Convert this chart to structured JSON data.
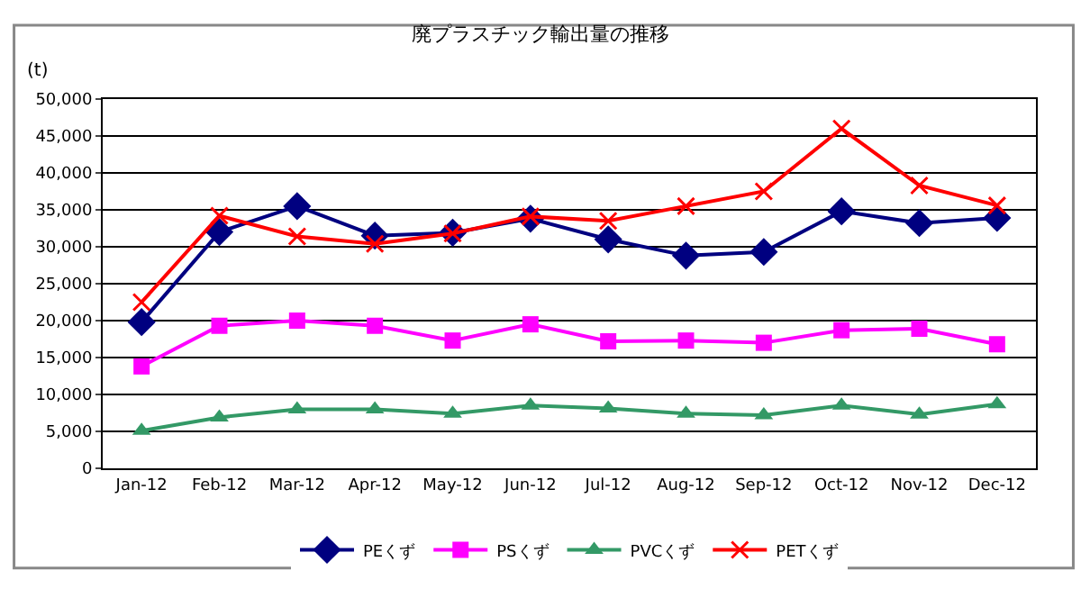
{
  "chart_data": {
    "type": "line",
    "title": "廃プラスチック輸出量の推移",
    "ylabel": "(t)",
    "categories": [
      "Jan-12",
      "Feb-12",
      "Mar-12",
      "Apr-12",
      "May-12",
      "Jun-12",
      "Jul-12",
      "Aug-12",
      "Sep-12",
      "Oct-12",
      "Nov-12",
      "Dec-12"
    ],
    "series": [
      {
        "name": "PEくず",
        "color": "#000080",
        "marker": "diamond",
        "values": [
          19800,
          32000,
          35500,
          31500,
          31900,
          33800,
          31000,
          28800,
          29300,
          34800,
          33200,
          33900
        ]
      },
      {
        "name": "PSくず",
        "color": "#ff00ff",
        "marker": "square",
        "values": [
          13800,
          19300,
          20000,
          19300,
          17300,
          19500,
          17200,
          17300,
          17000,
          18700,
          18900,
          16800
        ]
      },
      {
        "name": "PVCくず",
        "color": "#339966",
        "marker": "triangle",
        "values": [
          5100,
          6900,
          8000,
          8000,
          7400,
          8500,
          8100,
          7400,
          7200,
          8500,
          7300,
          8700
        ]
      },
      {
        "name": "PETくず",
        "color": "#ff0000",
        "marker": "cross",
        "values": [
          22500,
          34200,
          31400,
          30400,
          31800,
          34100,
          33500,
          35500,
          37500,
          46000,
          38300,
          35600
        ]
      }
    ],
    "ylim": [
      0,
      50000
    ],
    "yticks": [
      {
        "value": 0,
        "label": "0"
      },
      {
        "value": 5000,
        "label": "5,000"
      },
      {
        "value": 10000,
        "label": "10,000"
      },
      {
        "value": 15000,
        "label": "15,000"
      },
      {
        "value": 20000,
        "label": "20,000"
      },
      {
        "value": 25000,
        "label": "25,000"
      },
      {
        "value": 30000,
        "label": "30,000"
      },
      {
        "value": 35000,
        "label": "35,000"
      },
      {
        "value": 40000,
        "label": "40,000"
      },
      {
        "value": 45000,
        "label": "45,000"
      },
      {
        "value": 50000,
        "label": "50,000"
      }
    ],
    "grid": "y",
    "legend": "bottom",
    "line_style": "solid"
  }
}
